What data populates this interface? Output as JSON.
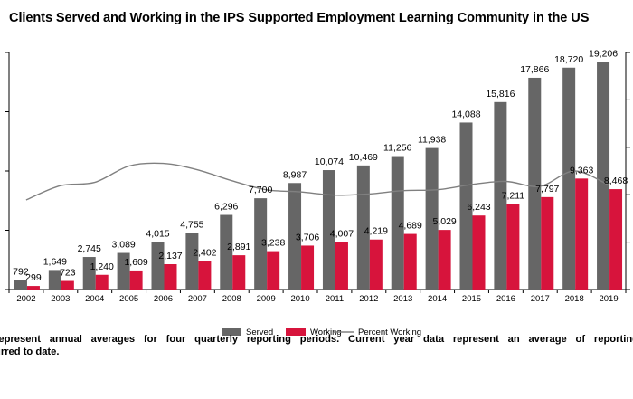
{
  "chart_data": {
    "type": "bar",
    "title": "Clients Served and Working in the IPS Supported Employment Learning Community in the US",
    "categories": [
      "2002",
      "2003",
      "2004",
      "2005",
      "2006",
      "2007",
      "2008",
      "2009",
      "2010",
      "2011",
      "2012",
      "2013",
      "2014",
      "2015",
      "2016",
      "2017",
      "2018",
      "2019"
    ],
    "series": [
      {
        "name": "Served",
        "color": "#666666",
        "values": [
          792,
          1649,
          2745,
          3089,
          4015,
          4755,
          6296,
          7700,
          8987,
          10074,
          10469,
          11256,
          11938,
          14088,
          15816,
          17866,
          18720,
          19206
        ],
        "labels": [
          "792",
          "1,649",
          "2,745",
          "3,089",
          "4,015",
          "4,755",
          "6,296",
          "7,700",
          "8,987",
          "10,074",
          "10,469",
          "11,256",
          "11,938",
          "14,088",
          "15,816",
          "17,866",
          "18,720",
          "19,206"
        ]
      },
      {
        "name": "Working",
        "color": "#d7143c",
        "values": [
          299,
          723,
          1240,
          1609,
          2137,
          2402,
          2891,
          3238,
          3706,
          4007,
          4219,
          4689,
          5029,
          6243,
          7211,
          7797,
          9363,
          8468
        ],
        "labels": [
          "299",
          "723",
          "1,240",
          "1,609",
          "2,137",
          "2,402",
          "2,891",
          "3,238",
          "3,706",
          "4,007",
          "4,219",
          "4,689",
          "5,029",
          "6,243",
          "7,211",
          "7,797",
          "9,363",
          "8,468"
        ]
      },
      {
        "name": "Percent Working",
        "color": "#808080",
        "type": "line",
        "values": [
          0.378,
          0.438,
          0.452,
          0.521,
          0.532,
          0.505,
          0.459,
          0.421,
          0.412,
          0.398,
          0.403,
          0.417,
          0.421,
          0.443,
          0.456,
          0.436,
          0.5,
          0.441
        ]
      }
    ],
    "ylim": [
      0,
      20000
    ],
    "y2lim": [
      0,
      1
    ],
    "legend_position": "bottom",
    "grid": false
  },
  "footnote": {
    "line1": "represent annual averages for four quarterly reporting periods. Current year data represent an average of reporting",
    "line2": "urred to date."
  }
}
